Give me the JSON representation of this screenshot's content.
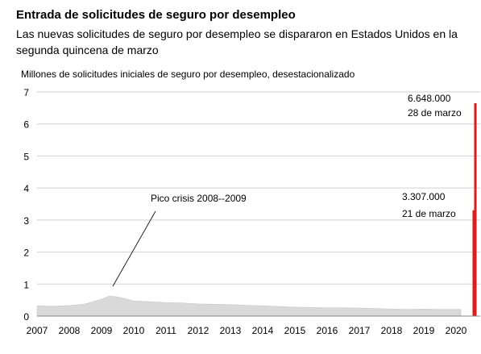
{
  "chart_data": {
    "type": "area",
    "title": "Entrada de solicitudes de seguro por desempleo",
    "subtitle": "Las nuevas solicitudes de seguro por desempleo se dispararon en Estados Unidos en la segunda quincena de marzo",
    "ylabel": "Millones de solicitudes iniciales de seguro por desempleo, desestacionalizado",
    "xlabel": "",
    "ylim": [
      0,
      7
    ],
    "yticks": [
      "0",
      "1",
      "2",
      "3",
      "4",
      "5",
      "6",
      "7"
    ],
    "xlim": [
      2007,
      2020.75
    ],
    "xticks": [
      "2007",
      "2008",
      "2009",
      "2010",
      "2011",
      "2012",
      "2013",
      "2014",
      "2015",
      "2016",
      "2017",
      "2018",
      "2019",
      "2020"
    ],
    "grid": "horizontal",
    "series": [
      {
        "color": "#d9d9d9",
        "x": [
          2007.0,
          2007.5,
          2008.0,
          2008.5,
          2009.0,
          2009.25,
          2009.5,
          2009.75,
          2010.0,
          2010.5,
          2011.0,
          2011.5,
          2012.0,
          2012.5,
          2013.0,
          2013.5,
          2014.0,
          2014.5,
          2015.0,
          2015.5,
          2016.0,
          2016.5,
          2017.0,
          2017.5,
          2018.0,
          2018.5,
          2019.0,
          2019.5,
          2020.0,
          2020.15
        ],
        "y": [
          0.32,
          0.31,
          0.33,
          0.38,
          0.53,
          0.63,
          0.6,
          0.54,
          0.47,
          0.45,
          0.42,
          0.41,
          0.38,
          0.37,
          0.36,
          0.34,
          0.32,
          0.3,
          0.28,
          0.27,
          0.26,
          0.26,
          0.25,
          0.24,
          0.22,
          0.21,
          0.22,
          0.21,
          0.21,
          0.21
        ]
      },
      {
        "type": "bar",
        "color": "#e21b1b",
        "x": [
          2020.55,
          2020.6
        ],
        "y": [
          3.307,
          6.648
        ]
      }
    ],
    "annotations": [
      {
        "text": "Pico crisis 2008--2009",
        "x": 2009.5,
        "y": 0.62
      },
      {
        "text": "6.648.000",
        "x": 2020.6,
        "y": 6.648
      },
      {
        "text": "28 de marzo",
        "x": 2020.6,
        "y": 6.648
      },
      {
        "text": "3.307.000",
        "x": 2020.55,
        "y": 3.307
      },
      {
        "text": "21 de marzo",
        "x": 2020.55,
        "y": 3.307
      }
    ]
  }
}
